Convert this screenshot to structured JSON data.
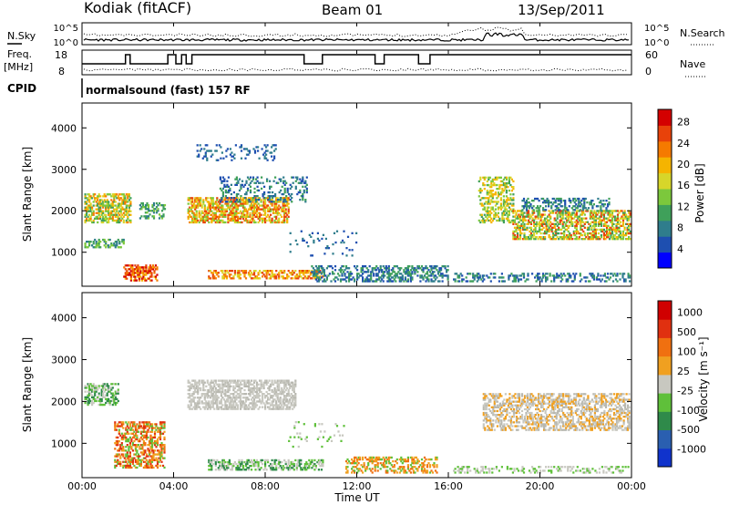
{
  "header": {
    "station": "Kodiak (fitACF)",
    "beam": "Beam 01",
    "date": "13/Sep/2011"
  },
  "panels": {
    "nsky_label": "N.Sky",
    "nsearch_label": "N.Search",
    "freq_label": "Freq.",
    "freq_unit": "[MHz]",
    "nave_label": "Nave",
    "cpid_label": "CPID",
    "cpid_value": "normalsound (fast) 157 RF",
    "noise_ticks": [
      "10^5",
      "10^0"
    ],
    "freq_ticks": [
      "18",
      "8"
    ],
    "nave_ticks": [
      "60",
      "0"
    ]
  },
  "chart_data": [
    {
      "type": "heatmap",
      "name": "power",
      "xlabel": "Time UT",
      "ylabel": "Slant Range [km]",
      "colorbar_label": "Power [dB]",
      "colorbar_ticks": [
        "28",
        "24",
        "20",
        "16",
        "12",
        "8",
        "4"
      ],
      "colorbar_colors": [
        "#0000ff",
        "#1e4fb0",
        "#2f7d8c",
        "#3fa05a",
        "#7cc83c",
        "#d7d62a",
        "#f5b400",
        "#f57a00",
        "#e8420a",
        "#d40000"
      ],
      "x_ticks": [
        "00:00",
        "04:00",
        "08:00",
        "12:00",
        "16:00",
        "20:00",
        "00:00"
      ],
      "y_ticks": [
        "4000",
        "3000",
        "2000",
        "1000"
      ],
      "xlim_hours": [
        0,
        24
      ],
      "ylim_km": [
        180,
        4600
      ]
    },
    {
      "type": "heatmap",
      "name": "velocity",
      "xlabel": "Time UT",
      "ylabel": "Slant Range [km]",
      "colorbar_label": "Velocity [m s⁻¹]",
      "colorbar_ticks": [
        "1000",
        "500",
        "100",
        "25",
        "-25",
        "-100",
        "-500",
        "-1000"
      ],
      "colorbar_colors": [
        "#1033cc",
        "#2a5fb0",
        "#2f8a4a",
        "#5fc03a",
        "#c8c8c0",
        "#f0a020",
        "#f07010",
        "#e03010",
        "#d00000"
      ],
      "x_ticks": [
        "00:00",
        "04:00",
        "08:00",
        "12:00",
        "16:00",
        "20:00",
        "00:00"
      ],
      "y_ticks": [
        "4000",
        "3000",
        "2000",
        "1000"
      ],
      "xlim_hours": [
        0,
        24
      ],
      "ylim_km": [
        180,
        4600
      ]
    }
  ]
}
